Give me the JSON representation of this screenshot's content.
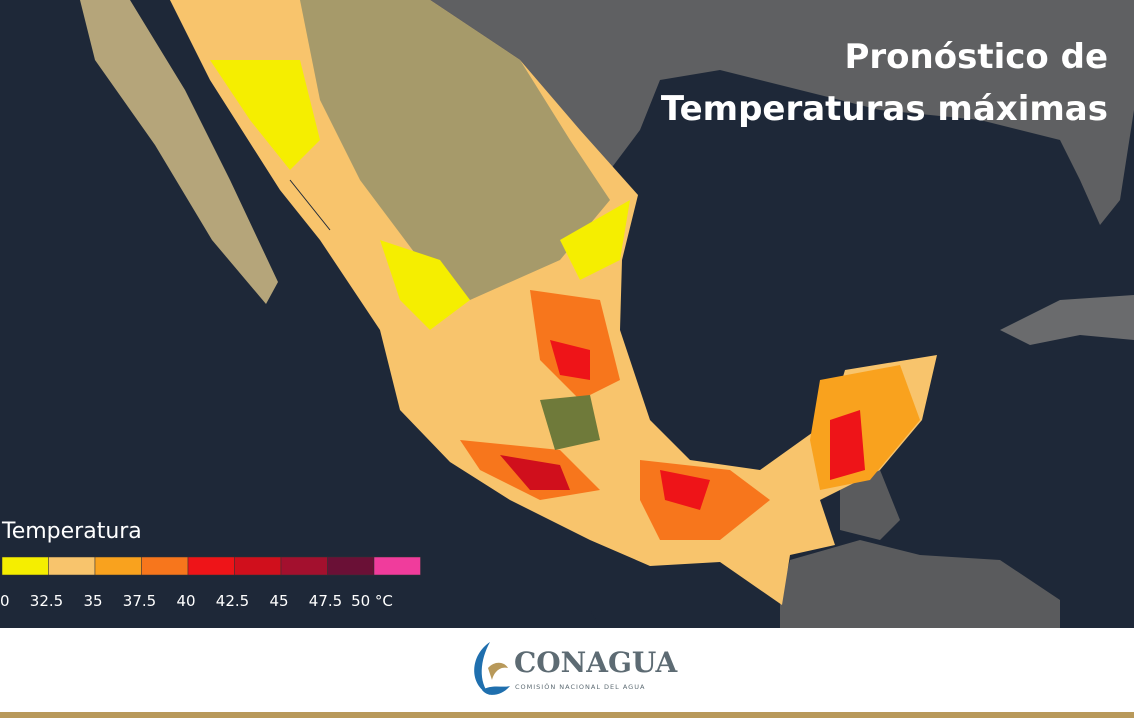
{
  "header": {
    "title_line1": "Pronóstico de",
    "title_line2": "Temperaturas máximas"
  },
  "legend": {
    "title": "Temperatura",
    "colors": [
      "#f5ee00",
      "#f8c46c",
      "#f9a21e",
      "#f7761c",
      "#ee1418",
      "#d00f1c",
      "#a3102e",
      "#6a1036",
      "#f03c9c"
    ],
    "labels": [
      "0",
      "32.5",
      "35",
      "37.5",
      "40",
      "42.5",
      "45",
      "47.5",
      "50 °C"
    ]
  },
  "footer": {
    "brand": "CONAGUA",
    "brand_subtitle": "COMISIÓN NACIONAL DEL AGUA"
  }
}
